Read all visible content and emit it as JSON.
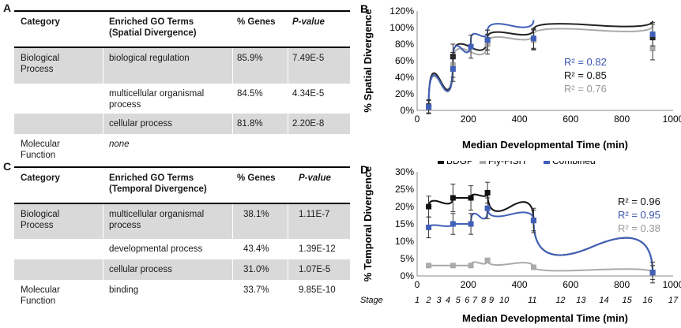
{
  "tables": [
    {
      "letter": "A",
      "headers": {
        "category": "Category",
        "terms_line1": "Enriched GO Terms",
        "terms_line2": "(Spatial Divergence)",
        "genes": "% Genes",
        "pvalue": "P-value"
      },
      "rows": [
        {
          "category": [
            "Biological",
            "Process"
          ],
          "term": [
            "biological regulation"
          ],
          "genes": "85.9%",
          "pvalue": "7.49E-5"
        },
        {
          "category": [],
          "term": [
            "multicellular organismal",
            "process"
          ],
          "genes": "84.5%",
          "pvalue": "4.34E-5"
        },
        {
          "category": [],
          "term": [
            "cellular process"
          ],
          "genes": "81.8%",
          "pvalue": "2.20E-8"
        },
        {
          "category": [
            "Molecular",
            "Function"
          ],
          "term": [
            "none"
          ],
          "genes": "",
          "pvalue": ""
        }
      ]
    },
    {
      "letter": "C",
      "headers": {
        "category": "Category",
        "terms_line1": "Enriched GO Terms",
        "terms_line2": "(Temporal Divergence)",
        "genes": "% Genes",
        "pvalue": "P-value"
      },
      "rows": [
        {
          "category": [
            "Biological",
            "Process"
          ],
          "term": [
            "multicellular organismal",
            "process"
          ],
          "genes": "38.1%",
          "pvalue": "1.11E-7"
        },
        {
          "category": [],
          "term": [
            "developmental process"
          ],
          "genes": "43.4%",
          "pvalue": "1.39E-12"
        },
        {
          "category": [],
          "term": [
            "cellular process"
          ],
          "genes": "31.0%",
          "pvalue": "1.07E-5"
        },
        {
          "category": [
            "Molecular",
            "Function"
          ],
          "term": [
            "binding"
          ],
          "genes": "33.7%",
          "pvalue": "9.85E-10"
        }
      ]
    }
  ],
  "chart_data": [
    {
      "letter": "B",
      "type": "scatter",
      "xlabel": "Median Developmental Time (min)",
      "ylabel": "% Spatial Divergence",
      "xlim": [
        0,
        1000
      ],
      "ylim": [
        0,
        120
      ],
      "xticks": [
        0,
        200,
        400,
        600,
        800,
        1000
      ],
      "yticks": [
        0,
        20,
        40,
        60,
        80,
        100,
        120
      ],
      "ytick_suffix": "%",
      "grid": false,
      "series": [
        {
          "color": "#222222",
          "x": [
            45,
            140,
            275,
            455,
            920
          ],
          "y": [
            5,
            65,
            85,
            86,
            88
          ],
          "err": [
            8,
            15,
            12,
            12,
            16
          ],
          "curve": [
            5,
            65,
            88,
            98,
            108
          ]
        },
        {
          "color": "#aaaaaa",
          "x": [
            45,
            140,
            275,
            455,
            920
          ],
          "y": [
            4,
            55,
            80,
            85,
            75
          ],
          "err": [
            8,
            15,
            12,
            12,
            14
          ],
          "curve": [
            4,
            60,
            82,
            92,
            102
          ]
        },
        {
          "color": "#4060b8",
          "x": [
            45,
            140,
            210,
            275,
            455,
            920
          ],
          "y": [
            4,
            50,
            77,
            85,
            87,
            92
          ],
          "err": [
            8,
            15,
            14,
            12,
            12,
            14
          ],
          "curve": [
            4,
            62,
            86,
            96,
            109
          ]
        }
      ],
      "r2_labels": [
        {
          "text": "R² = 0.82",
          "color": "#3850b0"
        },
        {
          "text": "R² = 0.85",
          "color": "#111111"
        },
        {
          "text": "R² = 0.76",
          "color": "#999999"
        }
      ]
    },
    {
      "letter": "D",
      "type": "scatter",
      "xlabel": "Median Developmental Time (min)",
      "ylabel": "% Temporal Divergence",
      "xlim": [
        0,
        1000
      ],
      "ylim": [
        0,
        30
      ],
      "xticks": [
        0,
        200,
        400,
        600,
        800,
        1000
      ],
      "yticks": [
        0,
        5,
        10,
        15,
        20,
        25,
        30
      ],
      "ytick_suffix": "%",
      "grid": false,
      "legend": [
        {
          "name": "BDGP",
          "color": "#111111"
        },
        {
          "name": "Fly-FISH",
          "color": "#aaaaaa"
        },
        {
          "name": "Combined",
          "color": "#4060b8"
        }
      ],
      "series": [
        {
          "name": "BDGP",
          "color": "#111111",
          "x": [
            45,
            140,
            210,
            275,
            455,
            920
          ],
          "y": [
            20,
            22.5,
            22.5,
            24,
            16,
            1
          ],
          "err": [
            3,
            4,
            3.5,
            3,
            3.5,
            3
          ]
        },
        {
          "name": "Fly-FISH",
          "color": "#aaaaaa",
          "x": [
            45,
            140,
            210,
            275,
            455,
            920
          ],
          "y": [
            3,
            3,
            3,
            4.5,
            2.5,
            1
          ],
          "err": [
            0,
            0,
            0,
            0,
            0,
            0
          ]
        },
        {
          "name": "Combined",
          "color": "#4060b8",
          "x": [
            45,
            140,
            210,
            275,
            455,
            920
          ],
          "y": [
            14,
            15,
            15,
            19.5,
            16,
            1
          ],
          "err": [
            3,
            3,
            3,
            3,
            3,
            2
          ]
        }
      ],
      "r2_labels": [
        {
          "text": "R² = 0.96",
          "color": "#111111"
        },
        {
          "text": "R² = 0.95",
          "color": "#3850b0"
        },
        {
          "text": "R² = 0.38",
          "color": "#999999"
        }
      ],
      "stage_label": "Stage",
      "stages": [
        {
          "label": "1",
          "x": 0
        },
        {
          "label": "2",
          "x": 45
        },
        {
          "label": "3",
          "x": 85
        },
        {
          "label": "4",
          "x": 120
        },
        {
          "label": "5",
          "x": 160
        },
        {
          "label": "6",
          "x": 195
        },
        {
          "label": "7",
          "x": 225
        },
        {
          "label": "8",
          "x": 260
        },
        {
          "label": "9",
          "x": 290
        },
        {
          "label": "10",
          "x": 340
        },
        {
          "label": "11",
          "x": 450
        },
        {
          "label": "12",
          "x": 560
        },
        {
          "label": "13",
          "x": 640
        },
        {
          "label": "14",
          "x": 730
        },
        {
          "label": "15",
          "x": 820
        },
        {
          "label": "16",
          "x": 900
        },
        {
          "label": "17",
          "x": 1000
        }
      ]
    }
  ]
}
